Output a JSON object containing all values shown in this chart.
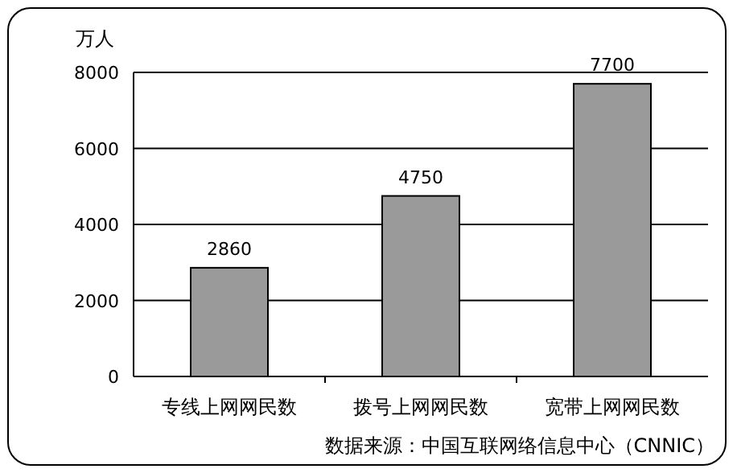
{
  "chart_data": {
    "type": "bar",
    "ylabel": "万人",
    "categories": [
      "专线上网网民数",
      "拨号上网网民数",
      "宽带上网网民数"
    ],
    "values": [
      2860,
      4750,
      7700
    ],
    "color": "#9a9a9a",
    "ylim": [
      0,
      8000
    ],
    "yticks": [
      0,
      2000,
      4000,
      6000,
      8000
    ],
    "grid": "y",
    "data_labels": true,
    "annotations": [
      "数据来源：中国互联网络信息中心（CNNIC）"
    ]
  }
}
